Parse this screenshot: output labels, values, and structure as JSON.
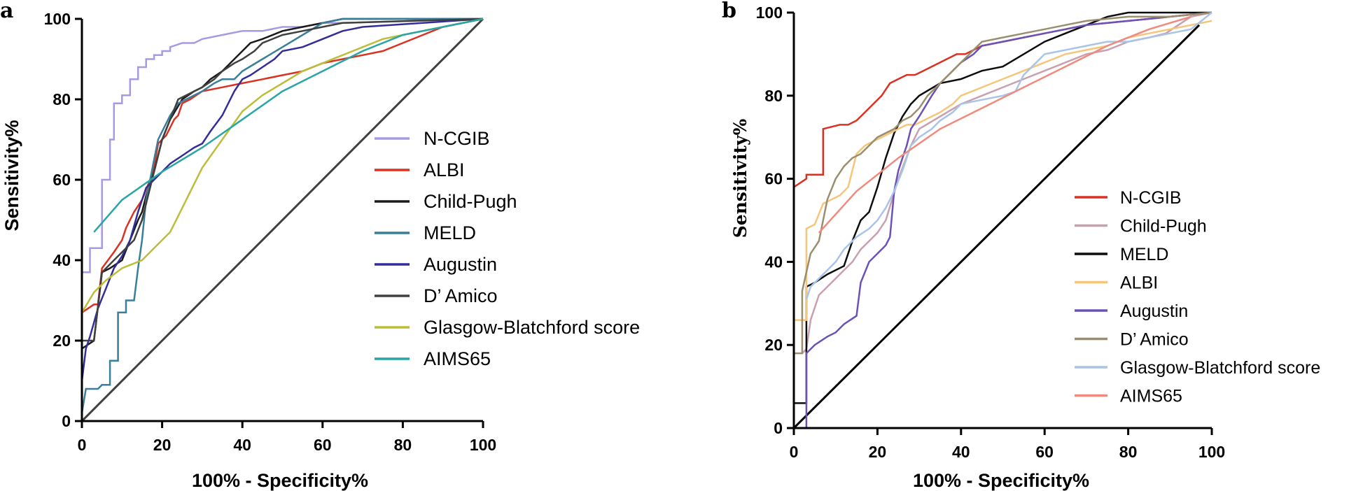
{
  "chart_data": [
    {
      "panel": "a",
      "type": "line",
      "xlabel": "100%  - Specificity%",
      "ylabel": "Sensitivity%",
      "xlim": [
        0,
        100
      ],
      "ylim": [
        0,
        100
      ],
      "xticks": [
        "0",
        "20",
        "40",
        "60",
        "80",
        "100"
      ],
      "yticks": [
        "0",
        "20",
        "40",
        "60",
        "80",
        "100"
      ],
      "reference_line": {
        "x": [
          0,
          100
        ],
        "y": [
          0,
          100
        ],
        "color": "#404040"
      },
      "legend_position": "right",
      "series": [
        {
          "name": "N-CGIB",
          "color": "#a89ae0",
          "x": [
            0,
            0,
            2,
            2,
            5,
            5,
            7,
            7,
            8,
            8,
            10,
            10,
            12,
            12,
            14,
            14,
            16,
            16,
            18,
            18,
            20,
            20,
            22,
            22,
            25,
            28,
            30,
            35,
            40,
            45,
            50,
            55,
            60,
            65,
            100
          ],
          "y": [
            0,
            37,
            37,
            43,
            43,
            60,
            60,
            70,
            70,
            79,
            79,
            81,
            81,
            85,
            85,
            88,
            88,
            90,
            90,
            91,
            91,
            92,
            92,
            93,
            94,
            94,
            95,
            96,
            97,
            97,
            98,
            98,
            99,
            99,
            100
          ]
        },
        {
          "name": "ALBI",
          "color": "#d93224",
          "x": [
            0,
            0,
            3,
            4,
            5,
            8,
            10,
            11,
            13,
            15,
            17,
            18,
            19,
            20,
            21,
            22,
            23,
            24,
            25,
            27,
            30,
            35,
            40,
            45,
            50,
            55,
            60,
            65,
            70,
            75,
            80,
            85,
            90,
            100
          ],
          "y": [
            0,
            27,
            29,
            29,
            38,
            42,
            45,
            48,
            52,
            55,
            60,
            63,
            69,
            70,
            71,
            73,
            75,
            76,
            79,
            80,
            82,
            83,
            84,
            85,
            86,
            87,
            89,
            90,
            91,
            92,
            94,
            96,
            98,
            100
          ]
        },
        {
          "name": "Child-Pugh",
          "color": "#1a1a1a",
          "x": [
            0,
            0,
            3,
            5,
            7,
            10,
            12,
            14,
            15,
            16,
            18,
            20,
            22,
            25,
            28,
            30,
            32,
            35,
            38,
            40,
            42,
            45,
            50,
            55,
            60,
            65,
            100
          ],
          "y": [
            0,
            18,
            20,
            37,
            38,
            40,
            45,
            50,
            52,
            56,
            62,
            70,
            75,
            80,
            82,
            83,
            85,
            87,
            90,
            92,
            94,
            95,
            97,
            98,
            99,
            100,
            100
          ]
        },
        {
          "name": "MELD",
          "color": "#3a7f99",
          "x": [
            0,
            0,
            1,
            2,
            4,
            5,
            7,
            7,
            9,
            9,
            11,
            11,
            13,
            14,
            15,
            16,
            17,
            18,
            19,
            20,
            22,
            24,
            26,
            30,
            33,
            35,
            38,
            40,
            45,
            50,
            55,
            60,
            65,
            100
          ],
          "y": [
            0,
            2,
            8,
            8,
            8,
            9,
            9,
            15,
            15,
            27,
            27,
            30,
            30,
            38,
            45,
            55,
            60,
            65,
            70,
            72,
            76,
            79,
            80,
            82,
            84,
            85,
            85,
            87,
            90,
            93,
            96,
            99,
            100,
            100
          ]
        },
        {
          "name": "Augustin",
          "color": "#332d9a",
          "x": [
            0,
            1,
            2,
            4,
            6,
            8,
            10,
            12,
            14,
            16,
            18,
            20,
            22,
            25,
            28,
            30,
            32,
            35,
            38,
            40,
            42,
            45,
            48,
            50,
            55,
            60,
            65,
            70,
            100
          ],
          "y": [
            10,
            18,
            21,
            28,
            33,
            38,
            41,
            45,
            52,
            58,
            60,
            62,
            64,
            66,
            68,
            69,
            72,
            76,
            82,
            85,
            86,
            88,
            90,
            92,
            93,
            95,
            97,
            98,
            100
          ]
        },
        {
          "name": "D’ Amico",
          "color": "#404040",
          "x": [
            0,
            0,
            3,
            5,
            8,
            10,
            13,
            15,
            17,
            18,
            20,
            22,
            24,
            26,
            28,
            30,
            33,
            35,
            38,
            40,
            43,
            45,
            50,
            55,
            60,
            65,
            100
          ],
          "y": [
            0,
            20,
            20,
            37,
            40,
            42,
            45,
            50,
            58,
            62,
            70,
            75,
            80,
            81,
            82,
            83,
            85,
            87,
            89,
            90,
            92,
            94,
            96,
            97,
            98,
            99,
            100
          ]
        },
        {
          "name": "Glasgow-Blatchford score",
          "color": "#bdbd3a",
          "x": [
            0,
            3,
            6,
            10,
            15,
            18,
            22,
            26,
            30,
            35,
            40,
            45,
            50,
            55,
            60,
            65,
            70,
            75,
            80,
            85,
            90,
            95,
            100
          ],
          "y": [
            27,
            32,
            35,
            38,
            40,
            43,
            47,
            55,
            63,
            70,
            77,
            81,
            84,
            87,
            89,
            91,
            93,
            95,
            96,
            97,
            98,
            99,
            100
          ]
        },
        {
          "name": "AIMS65",
          "color": "#2aa5a5",
          "x": [
            3,
            10,
            20,
            30,
            40,
            50,
            60,
            70,
            80,
            90,
            100
          ],
          "y": [
            47,
            55,
            62,
            68,
            75,
            82,
            87,
            92,
            96,
            98,
            100
          ]
        }
      ]
    },
    {
      "panel": "b",
      "type": "line",
      "xlabel": "100%  - Specificity%",
      "ylabel": "Sensitivity%",
      "xlim": [
        0,
        100
      ],
      "ylim": [
        0,
        100
      ],
      "xticks": [
        "0",
        "20",
        "40",
        "60",
        "80",
        "100"
      ],
      "yticks": [
        "0",
        "20",
        "40",
        "60",
        "80",
        "100"
      ],
      "reference_line": {
        "x": [
          0,
          97
        ],
        "y": [
          0,
          97
        ],
        "color": "#000000"
      },
      "legend_position": "right",
      "series": [
        {
          "name": "N-CGIB",
          "color": "#d93224",
          "x": [
            0,
            0,
            3,
            3,
            7,
            7,
            11,
            13,
            15,
            17,
            19,
            21,
            23,
            25,
            27,
            29,
            31,
            33,
            35,
            37,
            39,
            41,
            43,
            45,
            50,
            55,
            60,
            65,
            70,
            80,
            90,
            100
          ],
          "y": [
            0,
            58,
            60,
            61,
            61,
            72,
            73,
            73,
            74,
            76,
            78,
            80,
            83,
            84,
            85,
            85,
            86,
            87,
            88,
            89,
            90,
            90,
            91,
            92,
            93,
            94,
            95,
            96,
            97,
            98,
            99,
            100
          ]
        },
        {
          "name": "Child-Pugh",
          "color": "#c8a0b0",
          "x": [
            2,
            3,
            4,
            6,
            8,
            10,
            12,
            14,
            16,
            18,
            20,
            22,
            25,
            28,
            30,
            35,
            40,
            45,
            50,
            55,
            60,
            65,
            70,
            75,
            80,
            85,
            89,
            92,
            95,
            100
          ],
          "y": [
            18,
            19,
            26,
            32,
            34,
            36,
            38,
            40,
            43,
            45,
            47,
            50,
            60,
            68,
            72,
            75,
            78,
            80,
            82,
            84,
            86,
            88,
            90,
            91,
            93,
            94,
            95,
            97,
            99,
            100
          ]
        },
        {
          "name": "MELD",
          "color": "#0d0d0d",
          "x": [
            0,
            0,
            3,
            3,
            5,
            8,
            10,
            12,
            14,
            16,
            18,
            20,
            22,
            24,
            26,
            28,
            30,
            35,
            40,
            45,
            50,
            55,
            60,
            65,
            70,
            75,
            80,
            85,
            100
          ],
          "y": [
            0,
            6,
            6,
            34,
            35,
            37,
            38,
            39,
            45,
            50,
            52,
            58,
            65,
            71,
            75,
            78,
            80,
            83,
            84,
            86,
            87,
            90,
            93,
            95,
            97,
            99,
            100,
            100,
            100
          ]
        },
        {
          "name": "ALBI",
          "color": "#f5c67a",
          "x": [
            0,
            0,
            3,
            3,
            5,
            7,
            9,
            11,
            13,
            15,
            17,
            19,
            21,
            23,
            25,
            27,
            29,
            31,
            33,
            35,
            38,
            40,
            45,
            50,
            55,
            60,
            65,
            70,
            75,
            80,
            85,
            90,
            95,
            100
          ],
          "y": [
            0,
            26,
            26,
            48,
            49,
            54,
            55,
            56,
            58,
            66,
            68,
            69,
            70,
            71,
            72,
            73,
            73,
            74,
            75,
            76,
            78,
            80,
            82,
            84,
            86,
            88,
            90,
            91,
            92,
            94,
            95,
            96,
            97,
            98
          ]
        },
        {
          "name": "Augustin",
          "color": "#6a52b8",
          "x": [
            3,
            3,
            5,
            8,
            10,
            12,
            15,
            16,
            18,
            20,
            22,
            23,
            24,
            25,
            26,
            27,
            28,
            30,
            33,
            35,
            38,
            40,
            43,
            45,
            50,
            55,
            60,
            65,
            70,
            80,
            90,
            100
          ],
          "y": [
            0,
            18,
            20,
            22,
            23,
            25,
            27,
            35,
            40,
            42,
            44,
            46,
            57,
            62,
            65,
            68,
            72,
            75,
            80,
            83,
            86,
            88,
            90,
            92,
            93,
            94,
            95,
            96,
            97,
            98,
            99,
            100
          ]
        },
        {
          "name": "D’ Amico",
          "color": "#9b8e6e",
          "x": [
            0,
            0,
            2,
            2,
            4,
            6,
            8,
            10,
            12,
            14,
            16,
            18,
            20,
            22,
            24,
            26,
            28,
            30,
            32,
            35,
            38,
            40,
            42,
            45,
            50,
            55,
            60,
            65,
            70,
            80,
            90,
            100
          ],
          "y": [
            0,
            18,
            18,
            33,
            42,
            45,
            55,
            60,
            63,
            65,
            66,
            68,
            70,
            71,
            72,
            74,
            75,
            77,
            80,
            83,
            86,
            88,
            90,
            93,
            94,
            95,
            96,
            97,
            98,
            99,
            99,
            100
          ]
        },
        {
          "name": "Glasgow-Blatchford score",
          "color": "#a8c4e8",
          "x": [
            3,
            4,
            6,
            8,
            10,
            12,
            15,
            18,
            20,
            22,
            24,
            26,
            28,
            30,
            33,
            35,
            38,
            40,
            45,
            50,
            53,
            55,
            58,
            60,
            65,
            70,
            75,
            80,
            85,
            90,
            95,
            100
          ],
          "y": [
            31,
            34,
            36,
            38,
            40,
            43,
            46,
            48,
            50,
            53,
            57,
            62,
            68,
            70,
            72,
            74,
            76,
            78,
            79,
            80,
            81,
            85,
            88,
            90,
            91,
            92,
            93,
            93,
            94,
            95,
            96,
            100
          ]
        },
        {
          "name": "AIMS65",
          "color": "#f08a7e",
          "x": [
            6,
            15,
            25,
            35,
            45,
            55,
            65,
            75,
            85,
            95
          ],
          "y": [
            47,
            57,
            65,
            72,
            77,
            82,
            87,
            92,
            96,
            99
          ]
        }
      ]
    }
  ]
}
